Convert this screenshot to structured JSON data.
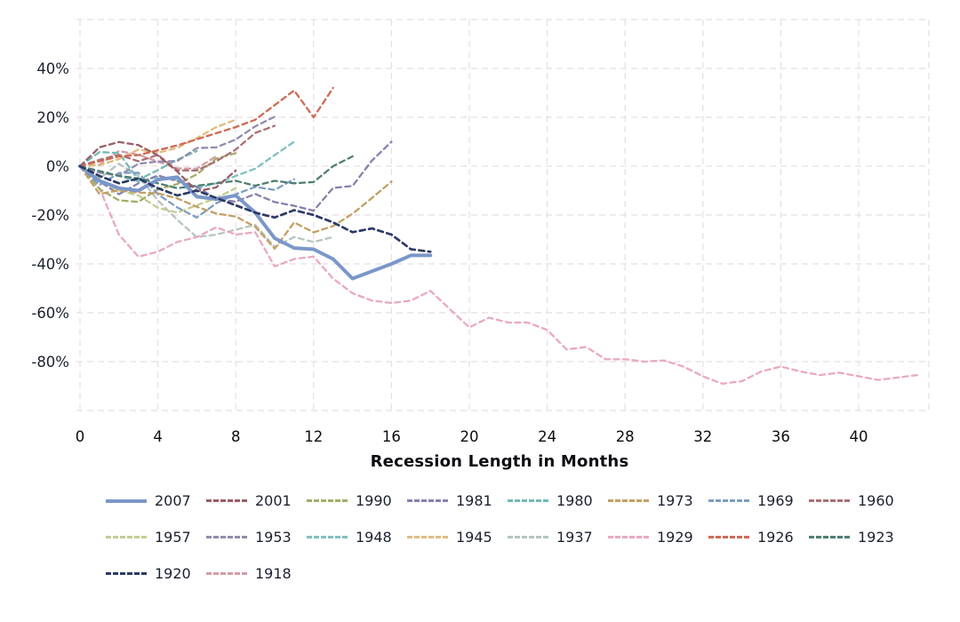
{
  "chart_data": {
    "type": "line",
    "title": "",
    "xlabel": "Recession Length in Months",
    "ylabel": "",
    "x_ticks": [
      0,
      4,
      8,
      12,
      16,
      20,
      24,
      28,
      32,
      36,
      40
    ],
    "y_ticks": [
      {
        "label": "40%",
        "value": 40
      },
      {
        "label": "20%",
        "value": 20
      },
      {
        "label": "0%",
        "value": 0
      },
      {
        "label": "-20%",
        "value": -20
      },
      {
        "label": "-40%",
        "value": -40
      },
      {
        "label": "-60%",
        "value": -60
      },
      {
        "label": "-80%",
        "value": -80
      }
    ],
    "xlim": [
      0,
      43.6
    ],
    "ylim": [
      -100,
      60
    ],
    "grid": "dashed",
    "grid_color": "#e8dee8",
    "axis_text_color": "#1c2130",
    "legend_position": "bottom",
    "legend_columns": 8,
    "series": [
      {
        "name": "2007",
        "color": "#7b97c9",
        "style": "solid",
        "width": 4,
        "values": [
          0,
          -6,
          -9,
          -10,
          -5.5,
          -4.5,
          -12.5,
          -13.5,
          -12,
          -19,
          -29.5,
          -33.5,
          -34,
          -38,
          -46,
          -43,
          -40,
          -36.5,
          -36.5
        ]
      },
      {
        "name": "2001",
        "color": "#9b5d66",
        "style": "dashed",
        "width": 2.3,
        "values": [
          0,
          7.7,
          9.9,
          8.6,
          4.4,
          -2.2,
          -10.3,
          -8.7,
          -1.8
        ]
      },
      {
        "name": "1990",
        "color": "#a4ad68",
        "style": "dashed",
        "width": 2.3,
        "values": [
          0,
          -9.4,
          -14,
          -14.6,
          -9.5,
          -7.3,
          -3.4,
          3.1,
          5.3
        ]
      },
      {
        "name": "1981",
        "color": "#8a7fae",
        "style": "dashed",
        "width": 2.3,
        "values": [
          0,
          -6.2,
          -11.5,
          -7,
          -3.8,
          -6.1,
          -8.4,
          -13.5,
          -14.5,
          -11.4,
          -14.7,
          -16.2,
          -18.2,
          -8.9,
          -8.1,
          2.3,
          10
        ]
      },
      {
        "name": "1980",
        "color": "#75b9b4",
        "style": "dashed",
        "width": 2.3,
        "values": [
          0,
          5.8,
          5.4,
          -5.6,
          -1.6,
          2.6,
          6.2
        ]
      },
      {
        "name": "1973",
        "color": "#c49f63",
        "style": "dashed",
        "width": 2.3,
        "values": [
          0,
          -11.4,
          -9.9,
          -10.8,
          -11.1,
          -13.2,
          -16.6,
          -19.4,
          -20.6,
          -24.8,
          -33.8,
          -23,
          -27.1,
          -24.5,
          -19.5,
          -13,
          -6.3
        ]
      },
      {
        "name": "1969",
        "color": "#7e9dc1",
        "style": "dashed",
        "width": 2.3,
        "values": [
          0,
          -7.7,
          -2.8,
          -2.7,
          -11.5,
          -16.9,
          -21,
          -15.2,
          -11.5,
          -8.5,
          -9.7,
          -5.3
        ]
      },
      {
        "name": "1960",
        "color": "#aa7076",
        "style": "dashed",
        "width": 2.3,
        "values": [
          0,
          2.6,
          4.6,
          2,
          4.6,
          -1.7,
          -1.8,
          2,
          6.8,
          13.6,
          16.5
        ]
      },
      {
        "name": "1957",
        "color": "#c3cd92",
        "style": "dashed",
        "width": 2.3,
        "values": [
          0,
          -6,
          -10,
          -12,
          -17,
          -19,
          -16,
          -13,
          -9
        ]
      },
      {
        "name": "1953",
        "color": "#908cae",
        "style": "dashed",
        "width": 2.3,
        "values": [
          0,
          -2.6,
          -3.9,
          1,
          1.9,
          2.1,
          7.4,
          7.7,
          10.9,
          16.3,
          20.2
        ]
      },
      {
        "name": "1948",
        "color": "#81bfc2",
        "style": "dashed",
        "width": 2.3,
        "values": [
          0,
          -2.5,
          -4,
          -6.3,
          -4.4,
          -5.7,
          -9,
          -7,
          -4,
          -1,
          4.5,
          10
        ]
      },
      {
        "name": "1945",
        "color": "#e1bb81",
        "style": "dashed",
        "width": 2.3,
        "values": [
          0,
          0.4,
          2.9,
          6.8,
          5.5,
          7.5,
          11.5,
          16,
          19
        ]
      },
      {
        "name": "1937",
        "color": "#b7c5bf",
        "style": "dashed",
        "width": 2.3,
        "values": [
          0,
          -5,
          1,
          -4,
          -14,
          -22,
          -29,
          -28,
          -26,
          -24,
          -33,
          -29,
          -31,
          -29
        ]
      },
      {
        "name": "1929",
        "color": "#eaa9be",
        "style": "dashed",
        "width": 2.3,
        "values": [
          0,
          -9,
          -28,
          -37,
          -35,
          -31,
          -29,
          -25,
          -28,
          -27,
          -41,
          -38,
          -37,
          -46,
          -52,
          -55,
          -56,
          -55,
          -51,
          -58.5,
          -66,
          -62,
          -64,
          -64,
          -67,
          -75,
          -74,
          -79,
          -79,
          -80,
          -79.5,
          -82,
          -86,
          -89,
          -88,
          -84,
          -82,
          -84,
          -85.5,
          -84.5,
          -86,
          -87.5,
          -86.5,
          -85.5
        ]
      },
      {
        "name": "1926",
        "color": "#cf6a54",
        "style": "dashed",
        "width": 2.3,
        "values": [
          0,
          2,
          4,
          4.5,
          6.5,
          8.5,
          11,
          13.5,
          16,
          19,
          25,
          31,
          20,
          32
        ]
      },
      {
        "name": "1923",
        "color": "#4f7e72",
        "style": "dashed",
        "width": 2.3,
        "values": [
          0,
          -2,
          -4,
          -5,
          -7,
          -9,
          -8,
          -7,
          -6,
          -8,
          -6,
          -7,
          -6.5,
          0,
          4
        ]
      },
      {
        "name": "1920",
        "color": "#2d3a66",
        "style": "dashed",
        "width": 2.7,
        "values": [
          0,
          -4,
          -7,
          -5,
          -9,
          -12,
          -10,
          -13,
          -16,
          -19,
          -21,
          -18,
          -20,
          -23,
          -27,
          -25.5,
          -28,
          -34,
          -35
        ]
      },
      {
        "name": "1918",
        "color": "#d59da7",
        "style": "dashed",
        "width": 2.3,
        "values": [
          0,
          0.6,
          6.2,
          4.7,
          1.9,
          -0.9,
          -1,
          4.1
        ]
      }
    ],
    "draw_order": [
      "1937",
      "1929",
      "1918",
      "1957",
      "1948",
      "1980",
      "1945",
      "1990",
      "1960",
      "1953",
      "1981",
      "1969",
      "1973",
      "1923",
      "1926",
      "2001",
      "2007",
      "1920"
    ]
  }
}
